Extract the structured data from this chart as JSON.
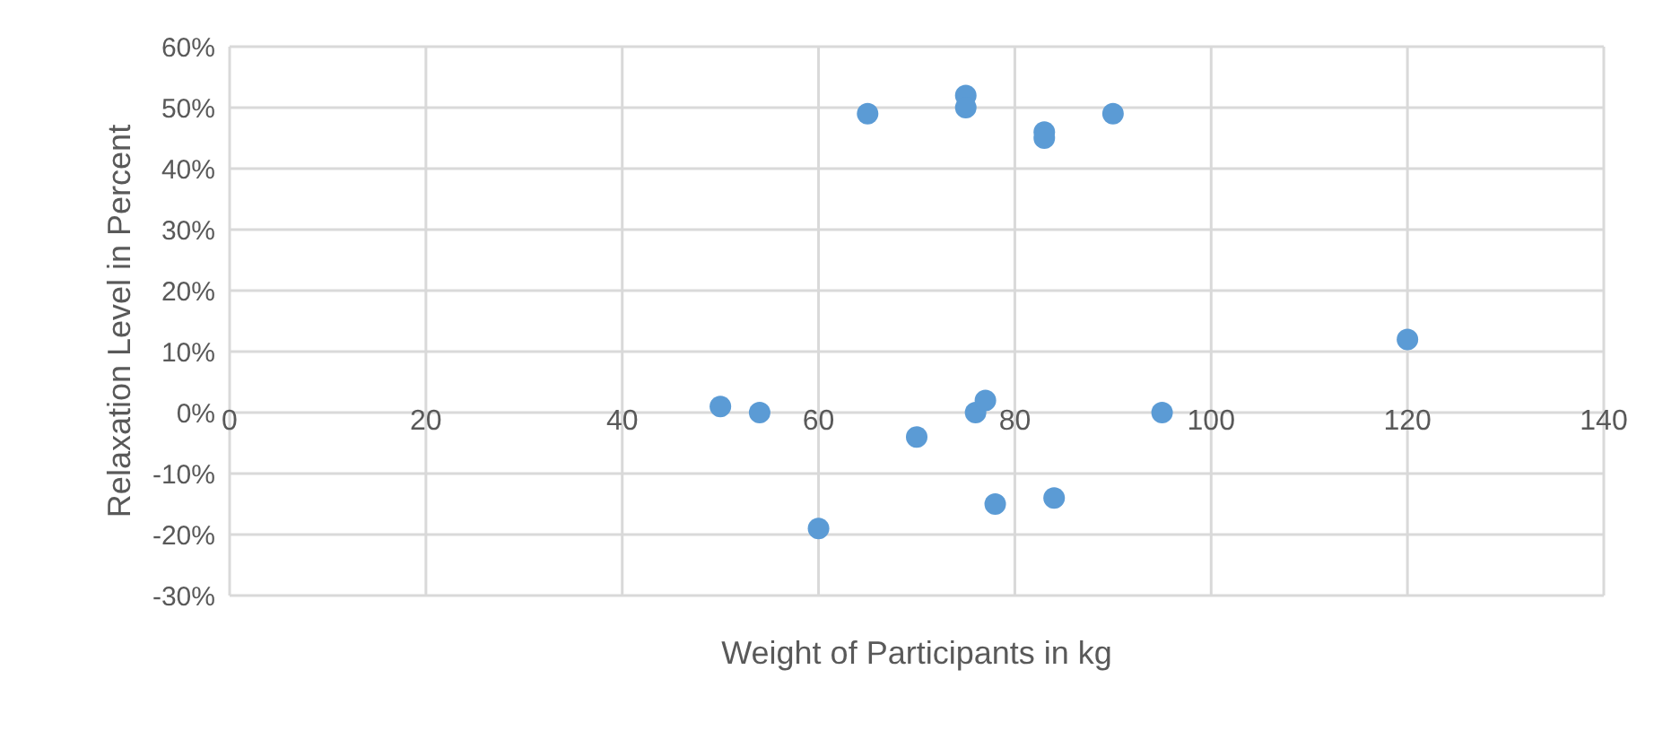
{
  "chart_data": {
    "type": "scatter",
    "xlabel": "Weight of Participants in kg",
    "ylabel": "Relaxation Level in Percent",
    "x": [
      50,
      54,
      60,
      65,
      70,
      75,
      75,
      76,
      77,
      78,
      83,
      83,
      84,
      90,
      95,
      120
    ],
    "values": [
      1,
      0,
      -19,
      49,
      -4,
      52,
      50,
      0,
      2,
      -15,
      46,
      45,
      -14,
      49,
      0,
      12
    ],
    "color": "#5b9bd5",
    "marker": "circle",
    "grid": true,
    "legend": false,
    "xlim": [
      0,
      140
    ],
    "xticks": [
      0,
      20,
      40,
      60,
      80,
      100,
      120,
      140
    ],
    "ylim": [
      -30,
      60
    ],
    "yticks": [
      {
        "value": -30,
        "label": "-30%"
      },
      {
        "value": -20,
        "label": "-20%"
      },
      {
        "value": -10,
        "label": "-10%"
      },
      {
        "value": 0,
        "label": "0%"
      },
      {
        "value": 10,
        "label": "10%"
      },
      {
        "value": 20,
        "label": "20%"
      },
      {
        "value": 30,
        "label": "30%"
      },
      {
        "value": 40,
        "label": "40%"
      },
      {
        "value": 50,
        "label": "50%"
      },
      {
        "value": 60,
        "label": "60%"
      }
    ]
  }
}
